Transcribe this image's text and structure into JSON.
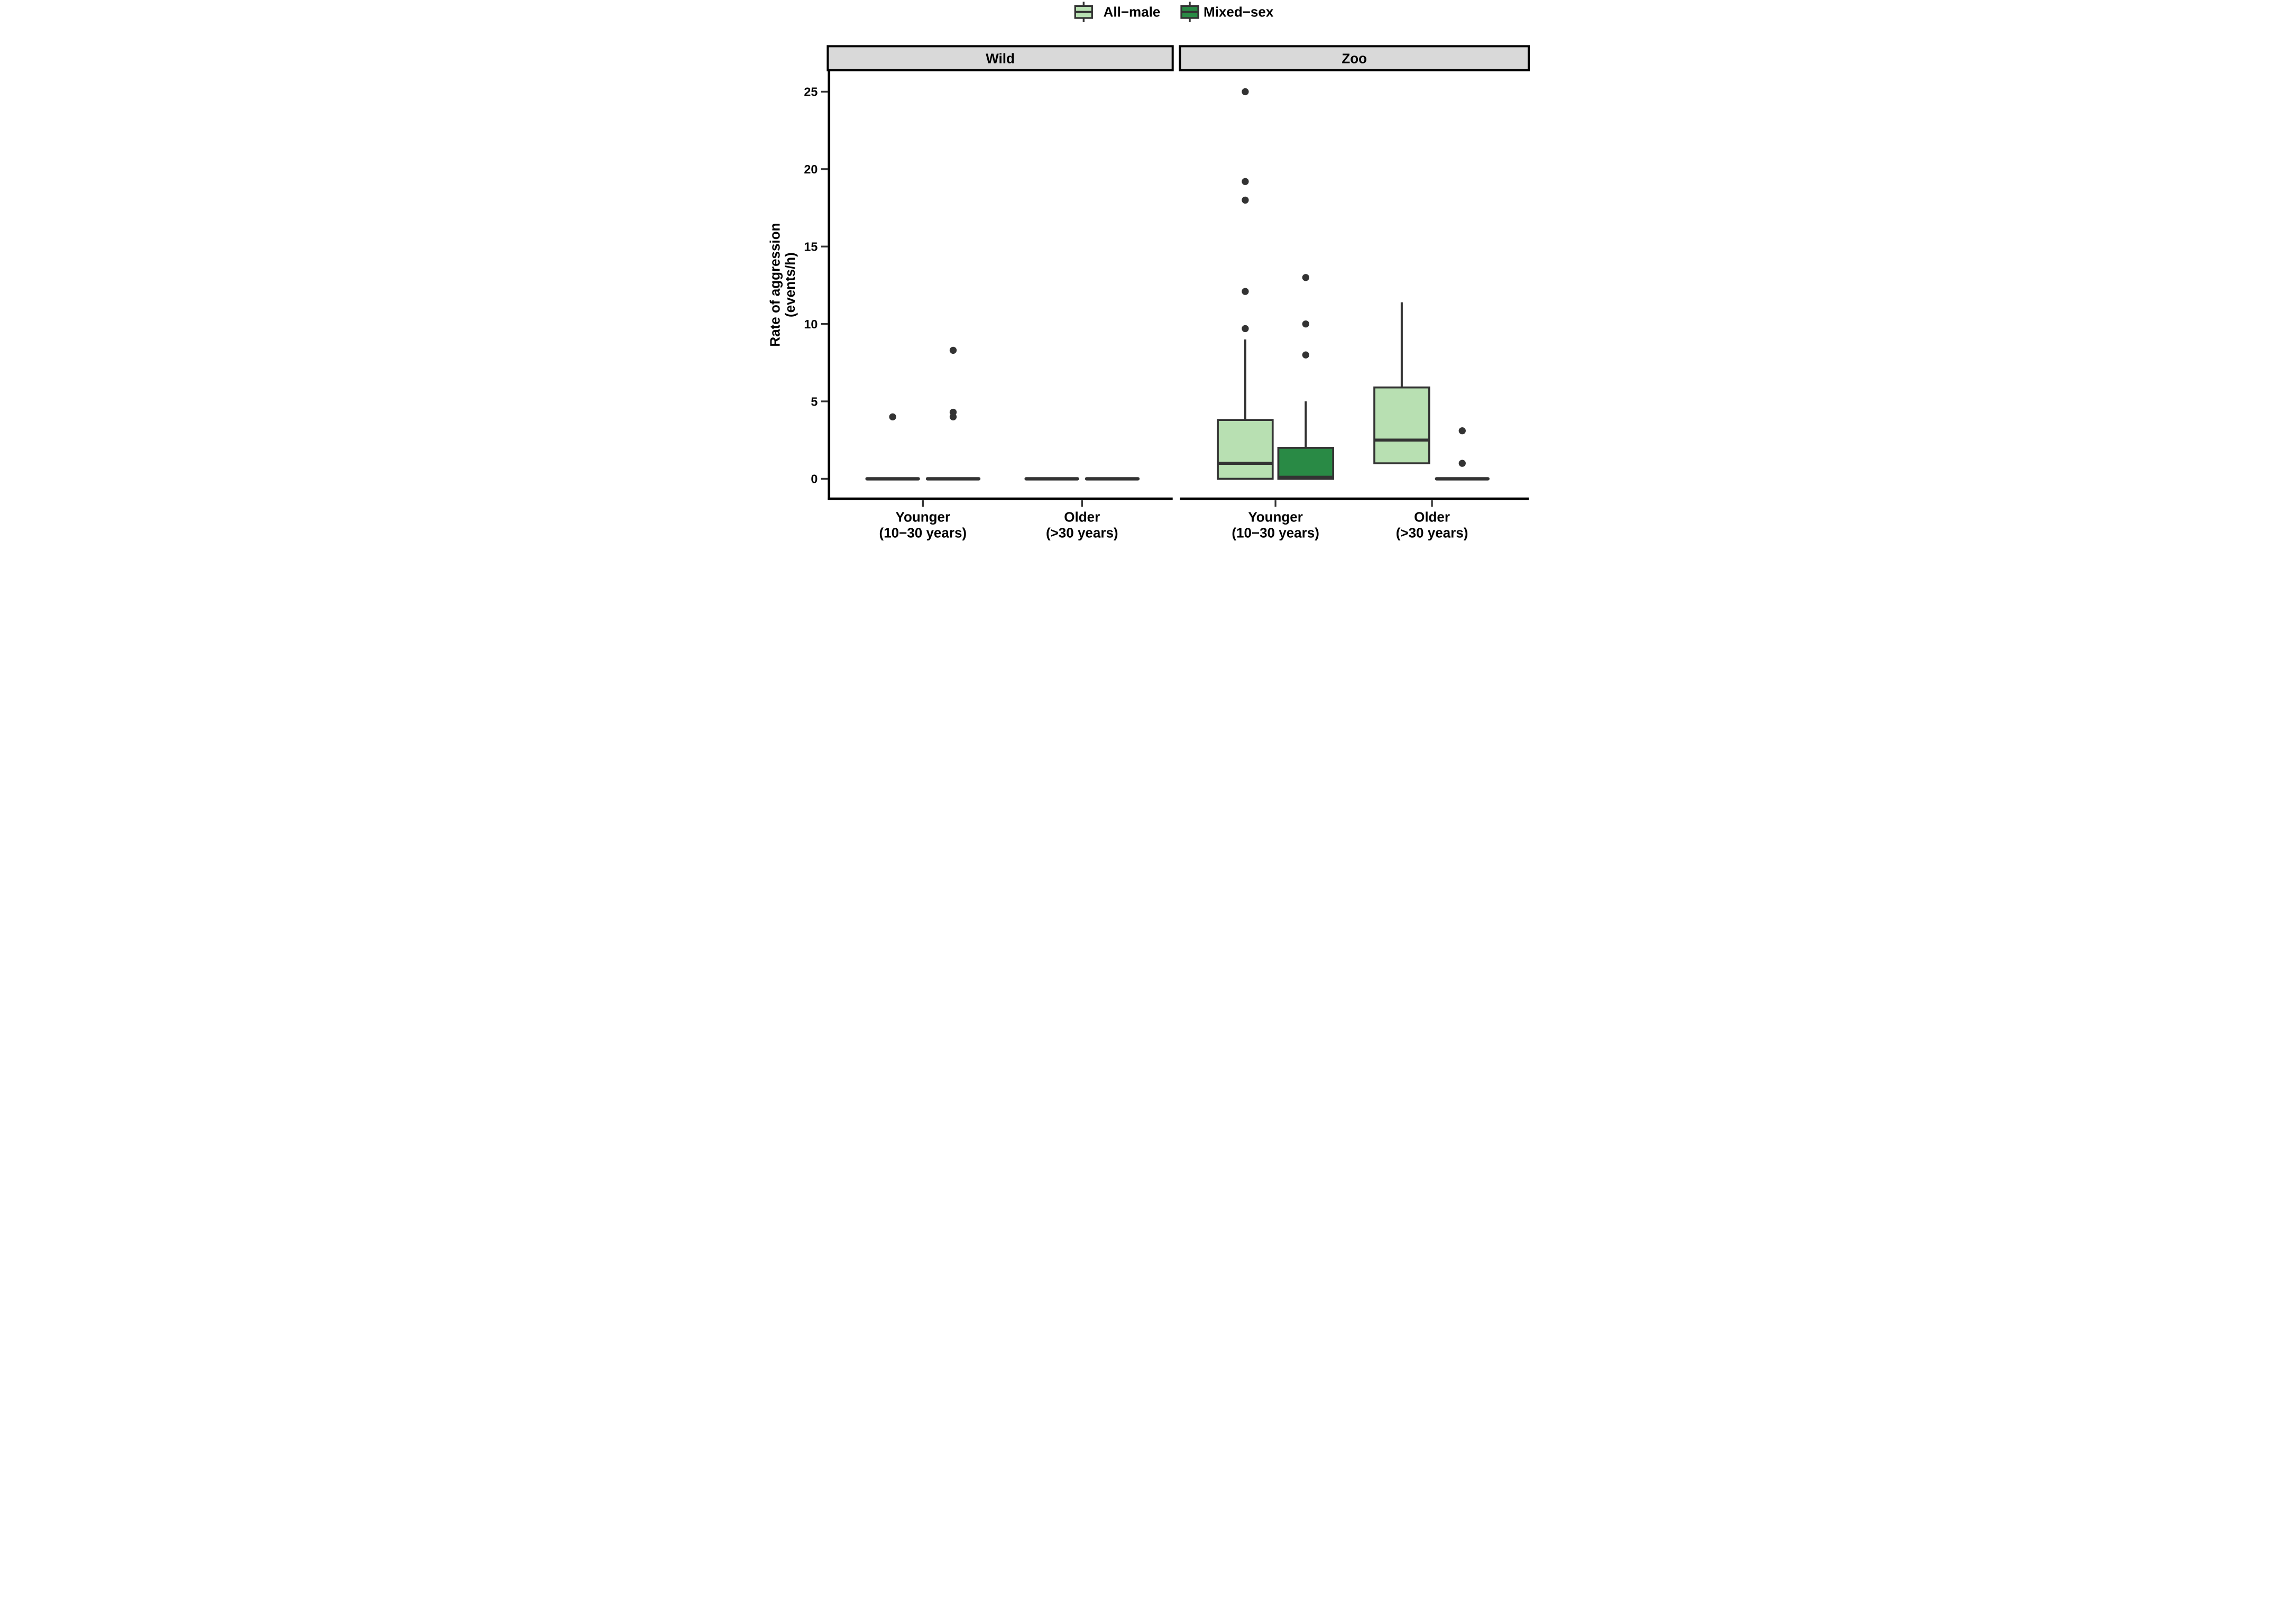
{
  "chart_data": {
    "type": "boxplot",
    "title": "",
    "ylabel_lines": [
      "Rate of aggression",
      "(events/h)"
    ],
    "xlabel": "",
    "yticks": [
      0,
      5,
      10,
      15,
      20,
      25
    ],
    "ylim": [
      0,
      25
    ],
    "grid": false,
    "legend_position": "top-center",
    "legend": [
      {
        "label": "All−male",
        "fill": "#b8e0b2"
      },
      {
        "label": "Mixed−sex",
        "fill": "#298a45"
      }
    ],
    "colors": {
      "all_male_fill": "#b8e0b2",
      "mixed_sex_fill": "#298a45",
      "box_stroke": "#333333",
      "outlier_fill": "#333333",
      "axis_line": "#000000",
      "tick_mark": "#333333",
      "strip_fill": "#d9d9d9",
      "strip_border": "#000000",
      "text": "#000000",
      "background": "#ffffff"
    },
    "facets": [
      {
        "label": "Wild",
        "groups": [
          {
            "label_lines": [
              "Younger",
              "(10−30 years)"
            ],
            "boxes": [
              {
                "series": "All−male",
                "whisker_low": 0,
                "q1": 0,
                "median": 0,
                "q3": 0,
                "whisker_high": 0,
                "outliers": [
                  4.0
                ]
              },
              {
                "series": "Mixed−sex",
                "whisker_low": 0,
                "q1": 0,
                "median": 0,
                "q3": 0,
                "whisker_high": 0,
                "outliers": [
                  8.3,
                  4.3,
                  4.0
                ]
              }
            ]
          },
          {
            "label_lines": [
              "Older",
              "(>30 years)"
            ],
            "boxes": [
              {
                "series": "All−male",
                "whisker_low": 0,
                "q1": 0,
                "median": 0,
                "q3": 0,
                "whisker_high": 0,
                "outliers": []
              },
              {
                "series": "Mixed−sex",
                "whisker_low": 0,
                "q1": 0,
                "median": 0,
                "q3": 0,
                "whisker_high": 0,
                "outliers": []
              }
            ]
          }
        ]
      },
      {
        "label": "Zoo",
        "groups": [
          {
            "label_lines": [
              "Younger",
              "(10−30 years)"
            ],
            "boxes": [
              {
                "series": "All−male",
                "whisker_low": 0,
                "q1": 0,
                "median": 1.0,
                "q3": 3.8,
                "whisker_high": 9.0,
                "outliers": [
                  25.0,
                  19.2,
                  18.0,
                  12.1,
                  9.7
                ]
              },
              {
                "series": "Mixed−sex",
                "whisker_low": 0,
                "q1": 0,
                "median": 0.1,
                "q3": 2.0,
                "whisker_high": 5.0,
                "outliers": [
                  13.0,
                  10.0,
                  8.0
                ]
              }
            ]
          },
          {
            "label_lines": [
              "Older",
              "(>30 years)"
            ],
            "boxes": [
              {
                "series": "All−male",
                "whisker_low": 1.0,
                "q1": 1.0,
                "median": 2.5,
                "q3": 5.9,
                "whisker_high": 11.4,
                "outliers": []
              },
              {
                "series": "Mixed−sex",
                "whisker_low": 0,
                "q1": 0,
                "median": 0,
                "q3": 0,
                "whisker_high": 0,
                "outliers": [
                  3.1,
                  1.0
                ]
              }
            ]
          }
        ]
      }
    ]
  }
}
